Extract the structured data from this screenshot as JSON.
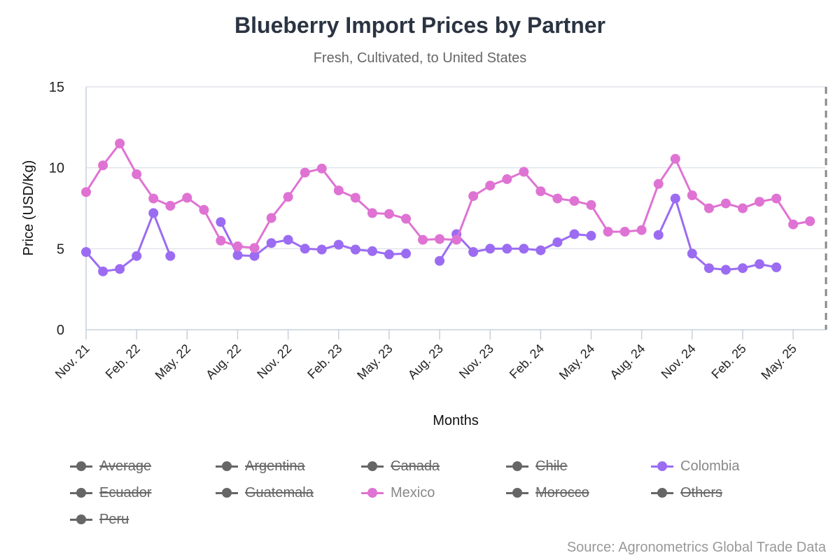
{
  "chart_data": {
    "type": "line",
    "title": "Blueberry Import Prices by Partner",
    "subtitle": "Fresh, Cultivated, to United States",
    "xlabel": "Months",
    "ylabel": "Price (USD/Kg)",
    "ylim": [
      0,
      15
    ],
    "yticks": [
      "0",
      "5",
      "10",
      "15"
    ],
    "x_months": [
      "Nov. 21",
      "Dec. 21",
      "Jan. 22",
      "Feb. 22",
      "Mar. 22",
      "Apr. 22",
      "May. 22",
      "Jun. 22",
      "Jul. 22",
      "Aug. 22",
      "Sep. 22",
      "Oct. 22",
      "Nov. 22",
      "Dec. 22",
      "Jan. 23",
      "Feb. 23",
      "Mar. 23",
      "Apr. 23",
      "May. 23",
      "Jun. 23",
      "Jul. 23",
      "Aug. 23",
      "Sep. 23",
      "Oct. 23",
      "Nov. 23",
      "Dec. 23",
      "Jan. 24",
      "Feb. 24",
      "Mar. 24",
      "Apr. 24",
      "May. 24",
      "Jun. 24",
      "Jul. 24",
      "Aug. 24",
      "Sep. 24",
      "Oct. 24",
      "Nov. 24",
      "Dec. 24",
      "Jan. 25",
      "Feb. 25",
      "Mar. 25",
      "Apr. 25",
      "May. 25",
      "Jun. 25"
    ],
    "xtick_labels": [
      "Nov. 21",
      "Feb. 22",
      "May. 22",
      "Aug. 22",
      "Nov. 22",
      "Feb. 23",
      "May. 23",
      "Aug. 23",
      "Nov. 23",
      "Feb. 24",
      "May. 24",
      "Aug. 24",
      "Nov. 24",
      "Feb. 25",
      "May. 25"
    ],
    "grid": true,
    "legend_position": "bottom",
    "series": [
      {
        "name": "Colombia",
        "color": "#9b6cf2",
        "values": [
          4.8,
          3.6,
          3.75,
          4.55,
          7.2,
          4.55,
          null,
          null,
          6.65,
          4.6,
          4.55,
          5.35,
          5.55,
          5.0,
          4.95,
          5.25,
          4.95,
          4.85,
          4.65,
          4.7,
          null,
          4.25,
          5.9,
          4.8,
          5.0,
          5.0,
          5.0,
          4.9,
          5.4,
          5.9,
          5.8,
          null,
          null,
          null,
          5.85,
          8.1,
          4.7,
          3.8,
          3.7,
          3.8,
          4.05,
          3.85,
          null,
          null
        ]
      },
      {
        "name": "Mexico",
        "color": "#df73d3",
        "values": [
          8.5,
          10.15,
          11.5,
          9.6,
          8.1,
          7.65,
          8.15,
          7.4,
          5.5,
          5.15,
          5.05,
          6.9,
          8.2,
          9.7,
          9.95,
          8.6,
          8.15,
          7.2,
          7.15,
          6.85,
          5.55,
          5.6,
          5.55,
          8.25,
          8.9,
          9.3,
          9.75,
          8.55,
          8.1,
          7.95,
          7.7,
          6.05,
          6.05,
          6.15,
          9.0,
          10.55,
          8.3,
          7.5,
          7.8,
          7.5,
          7.9,
          8.1,
          6.5,
          6.7
        ]
      }
    ],
    "legend": [
      {
        "name": "Average",
        "hidden": true,
        "color": "#666666"
      },
      {
        "name": "Argentina",
        "hidden": true,
        "color": "#666666"
      },
      {
        "name": "Canada",
        "hidden": true,
        "color": "#666666"
      },
      {
        "name": "Chile",
        "hidden": true,
        "color": "#666666"
      },
      {
        "name": "Colombia",
        "hidden": false,
        "color": "#9b6cf2"
      },
      {
        "name": "Ecuador",
        "hidden": true,
        "color": "#666666"
      },
      {
        "name": "Guatemala",
        "hidden": true,
        "color": "#666666"
      },
      {
        "name": "Mexico",
        "hidden": false,
        "color": "#df73d3"
      },
      {
        "name": "Morocco",
        "hidden": true,
        "color": "#666666"
      },
      {
        "name": "Others",
        "hidden": true,
        "color": "#666666"
      },
      {
        "name": "Peru",
        "hidden": true,
        "color": "#666666"
      }
    ],
    "source": "Source: Agronometrics Global Trade Data"
  }
}
